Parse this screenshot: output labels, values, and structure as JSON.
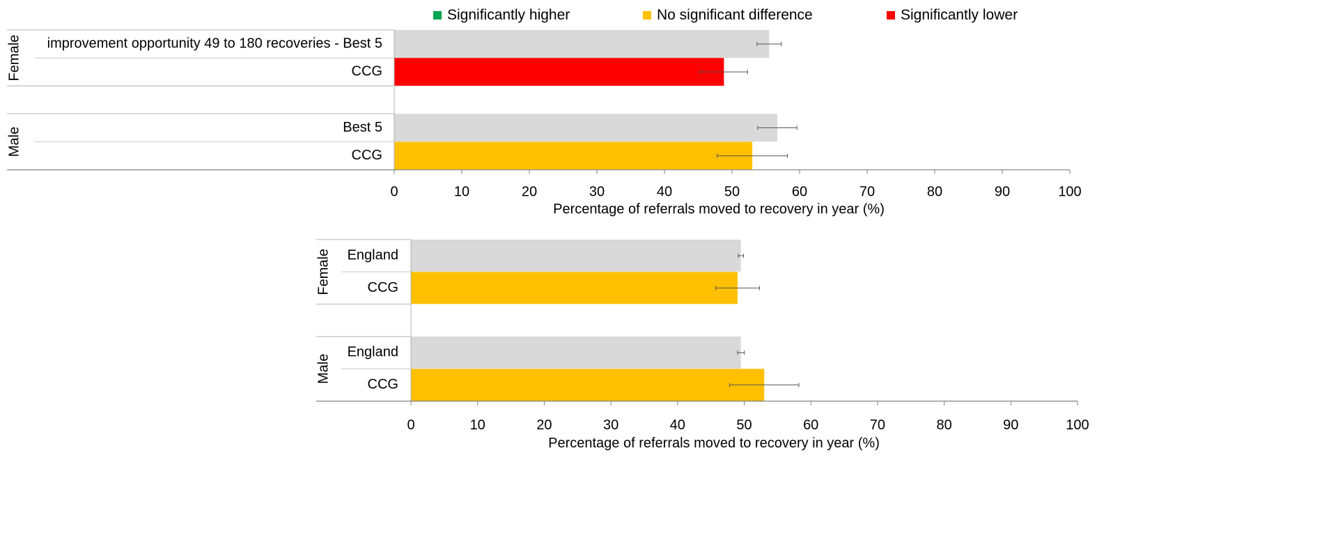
{
  "legend": [
    {
      "label": "Significantly higher",
      "color": "#00a651"
    },
    {
      "label": "No significant difference",
      "color": "#ffc000"
    },
    {
      "label": "Significantly lower",
      "color": "#ff0000"
    }
  ],
  "chart_data": [
    {
      "type": "bar",
      "orientation": "horizontal",
      "groups": [
        "Female",
        "Male"
      ],
      "categories": [
        {
          "group": "Female",
          "label": "improvement opportunity 49 to 180 recoveries - Best 5",
          "value": 55.5,
          "error": [
            53.7,
            57.3
          ],
          "color": "#d9d9d9"
        },
        {
          "group": "Female",
          "label": "CCG",
          "value": 48.8,
          "error": [
            45.3,
            52.3
          ],
          "color": "#ff0000"
        },
        {
          "group": "Male",
          "label": "Best 5",
          "value": 56.7,
          "error": [
            53.8,
            59.6
          ],
          "color": "#d9d9d9"
        },
        {
          "group": "Male",
          "label": "CCG",
          "value": 53.0,
          "error": [
            47.8,
            58.2
          ],
          "color": "#ffc000"
        }
      ],
      "xlabel": "Percentage of referrals moved to recovery in year (%)",
      "xlim": [
        0,
        100
      ],
      "xticks": [
        "0",
        "10",
        "20",
        "30",
        "40",
        "50",
        "60",
        "70",
        "80",
        "90",
        "100"
      ],
      "grid": false
    },
    {
      "type": "bar",
      "orientation": "horizontal",
      "groups": [
        "Female",
        "Male"
      ],
      "categories": [
        {
          "group": "Female",
          "label": "England",
          "value": 49.5,
          "error": [
            49.1,
            49.9
          ],
          "color": "#d9d9d9"
        },
        {
          "group": "Female",
          "label": "CCG",
          "value": 49.0,
          "error": [
            45.7,
            52.3
          ],
          "color": "#ffc000"
        },
        {
          "group": "Male",
          "label": "England",
          "value": 49.5,
          "error": [
            49.0,
            50.0
          ],
          "color": "#d9d9d9"
        },
        {
          "group": "Male",
          "label": "CCG",
          "value": 53.0,
          "error": [
            47.8,
            58.2
          ],
          "color": "#ffc000"
        }
      ],
      "xlabel": "Percentage of referrals moved  to recovery in year (%)",
      "xlim": [
        0,
        100
      ],
      "xticks": [
        "0",
        "10",
        "20",
        "30",
        "40",
        "50",
        "60",
        "70",
        "80",
        "90",
        "100"
      ],
      "grid": false
    }
  ]
}
